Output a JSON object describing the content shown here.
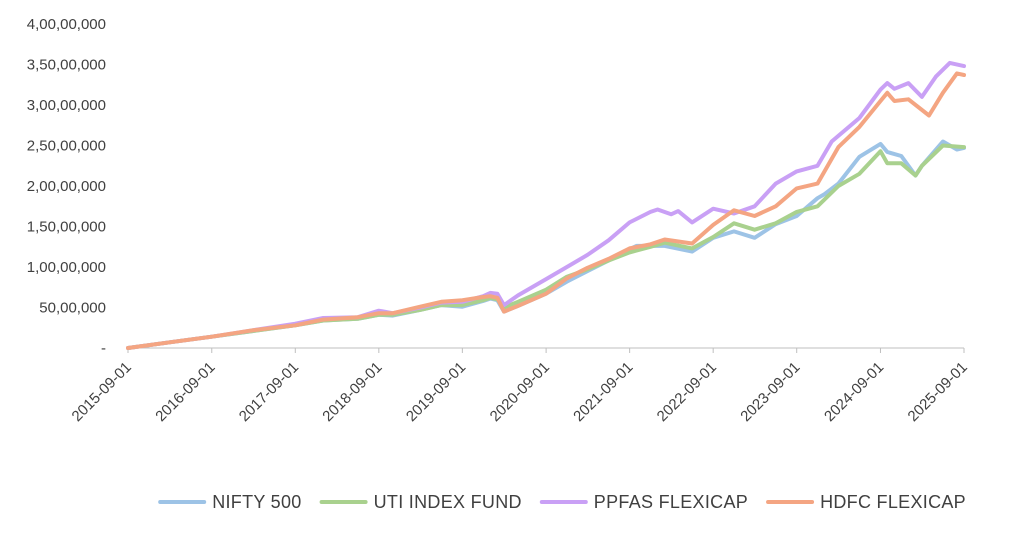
{
  "chart_data": {
    "type": "line",
    "title": "",
    "xlabel": "",
    "ylabel": "",
    "ylim": [
      0,
      40000000
    ],
    "y_ticks": [
      {
        "value": 0,
        "label": "-"
      },
      {
        "value": 5000000,
        "label": "50,00,000"
      },
      {
        "value": 10000000,
        "label": "1,00,00,000"
      },
      {
        "value": 15000000,
        "label": "1,50,00,000"
      },
      {
        "value": 20000000,
        "label": "2,00,00,000"
      },
      {
        "value": 25000000,
        "label": "2,50,00,000"
      },
      {
        "value": 30000000,
        "label": "3,00,00,000"
      },
      {
        "value": 35000000,
        "label": "3,50,00,000"
      },
      {
        "value": 40000000,
        "label": "4,00,00,000"
      }
    ],
    "x_ticks": [
      "2015-09-01",
      "2016-09-01",
      "2017-09-01",
      "2018-09-01",
      "2019-09-01",
      "2020-09-01",
      "2021-09-01",
      "2022-09-01",
      "2023-09-01",
      "2024-09-01",
      "2025-09-01"
    ],
    "xlim": [
      "2015-09-01",
      "2025-09-01"
    ],
    "grid": false,
    "legend_position": "bottom",
    "series": [
      {
        "name": "NIFTY 500",
        "color": "#9dc3e6",
        "points": [
          [
            "2015-09-01",
            0
          ],
          [
            "2016-03-01",
            700000
          ],
          [
            "2016-09-01",
            1400000
          ],
          [
            "2017-03-01",
            2100000
          ],
          [
            "2017-09-01",
            2800000
          ],
          [
            "2018-01-01",
            3400000
          ],
          [
            "2018-06-01",
            3600000
          ],
          [
            "2018-09-01",
            4100000
          ],
          [
            "2018-11-01",
            4000000
          ],
          [
            "2019-03-01",
            4700000
          ],
          [
            "2019-06-01",
            5300000
          ],
          [
            "2019-09-01",
            5100000
          ],
          [
            "2019-12-01",
            5800000
          ],
          [
            "2020-01-01",
            6100000
          ],
          [
            "2020-02-01",
            5900000
          ],
          [
            "2020-03-01",
            4500000
          ],
          [
            "2020-05-01",
            5200000
          ],
          [
            "2020-09-01",
            6700000
          ],
          [
            "2020-12-01",
            8200000
          ],
          [
            "2021-03-01",
            9500000
          ],
          [
            "2021-06-01",
            10800000
          ],
          [
            "2021-09-01",
            12200000
          ],
          [
            "2021-10-01",
            12600000
          ],
          [
            "2021-12-01",
            12600000
          ],
          [
            "2022-02-01",
            12600000
          ],
          [
            "2022-06-01",
            11900000
          ],
          [
            "2022-09-01",
            13600000
          ],
          [
            "2022-12-01",
            14400000
          ],
          [
            "2023-03-01",
            13600000
          ],
          [
            "2023-06-01",
            15300000
          ],
          [
            "2023-09-01",
            16300000
          ],
          [
            "2023-12-01",
            18500000
          ],
          [
            "2024-01-01",
            19000000
          ],
          [
            "2024-03-01",
            20300000
          ],
          [
            "2024-06-01",
            23600000
          ],
          [
            "2024-09-01",
            25200000
          ],
          [
            "2024-10-01",
            24200000
          ],
          [
            "2024-12-01",
            23700000
          ],
          [
            "2025-02-01",
            21300000
          ],
          [
            "2025-03-01",
            22500000
          ],
          [
            "2025-06-01",
            25500000
          ],
          [
            "2025-08-01",
            24500000
          ],
          [
            "2025-09-01",
            24700000
          ]
        ]
      },
      {
        "name": "UTI INDEX FUND",
        "color": "#a9d18e",
        "points": [
          [
            "2015-09-01",
            0
          ],
          [
            "2016-03-01",
            700000
          ],
          [
            "2016-09-01",
            1400000
          ],
          [
            "2017-03-01",
            2100000
          ],
          [
            "2017-09-01",
            2800000
          ],
          [
            "2018-01-01",
            3400000
          ],
          [
            "2018-06-01",
            3600000
          ],
          [
            "2018-09-01",
            4100000
          ],
          [
            "2018-11-01",
            4100000
          ],
          [
            "2019-03-01",
            4700000
          ],
          [
            "2019-06-01",
            5300000
          ],
          [
            "2019-09-01",
            5300000
          ],
          [
            "2019-12-01",
            5900000
          ],
          [
            "2020-01-01",
            6200000
          ],
          [
            "2020-02-01",
            6000000
          ],
          [
            "2020-03-01",
            5000000
          ],
          [
            "2020-05-01",
            5700000
          ],
          [
            "2020-09-01",
            7200000
          ],
          [
            "2020-12-01",
            8800000
          ],
          [
            "2021-03-01",
            9700000
          ],
          [
            "2021-06-01",
            10800000
          ],
          [
            "2021-09-01",
            11800000
          ],
          [
            "2021-12-01",
            12500000
          ],
          [
            "2022-02-01",
            13000000
          ],
          [
            "2022-06-01",
            12300000
          ],
          [
            "2022-09-01",
            13700000
          ],
          [
            "2022-12-01",
            15400000
          ],
          [
            "2023-03-01",
            14600000
          ],
          [
            "2023-06-01",
            15400000
          ],
          [
            "2023-09-01",
            16800000
          ],
          [
            "2023-12-01",
            17500000
          ],
          [
            "2024-03-01",
            20000000
          ],
          [
            "2024-06-01",
            21500000
          ],
          [
            "2024-09-01",
            24300000
          ],
          [
            "2024-10-01",
            22800000
          ],
          [
            "2024-12-01",
            22800000
          ],
          [
            "2025-02-01",
            21300000
          ],
          [
            "2025-03-01",
            22500000
          ],
          [
            "2025-06-01",
            25000000
          ],
          [
            "2025-09-01",
            24800000
          ]
        ]
      },
      {
        "name": "PPFAS FLEXICAP",
        "color": "#c9a0f5",
        "points": [
          [
            "2015-09-01",
            0
          ],
          [
            "2016-03-01",
            700000
          ],
          [
            "2016-09-01",
            1400000
          ],
          [
            "2017-03-01",
            2200000
          ],
          [
            "2017-09-01",
            3000000
          ],
          [
            "2018-01-01",
            3700000
          ],
          [
            "2018-06-01",
            3800000
          ],
          [
            "2018-09-01",
            4600000
          ],
          [
            "2018-11-01",
            4300000
          ],
          [
            "2019-03-01",
            5000000
          ],
          [
            "2019-06-01",
            5600000
          ],
          [
            "2019-09-01",
            5700000
          ],
          [
            "2019-12-01",
            6400000
          ],
          [
            "2020-01-01",
            6800000
          ],
          [
            "2020-02-01",
            6700000
          ],
          [
            "2020-03-01",
            5300000
          ],
          [
            "2020-05-01",
            6500000
          ],
          [
            "2020-09-01",
            8500000
          ],
          [
            "2020-12-01",
            10000000
          ],
          [
            "2021-03-01",
            11500000
          ],
          [
            "2021-06-01",
            13300000
          ],
          [
            "2021-09-01",
            15500000
          ],
          [
            "2021-12-01",
            16800000
          ],
          [
            "2022-01-01",
            17100000
          ],
          [
            "2022-03-01",
            16500000
          ],
          [
            "2022-04-01",
            16900000
          ],
          [
            "2022-06-01",
            15500000
          ],
          [
            "2022-09-01",
            17200000
          ],
          [
            "2022-12-01",
            16600000
          ],
          [
            "2023-03-01",
            17500000
          ],
          [
            "2023-06-01",
            20300000
          ],
          [
            "2023-09-01",
            21800000
          ],
          [
            "2023-12-01",
            22500000
          ],
          [
            "2024-02-01",
            25500000
          ],
          [
            "2024-06-01",
            28400000
          ],
          [
            "2024-09-01",
            31900000
          ],
          [
            "2024-10-01",
            32700000
          ],
          [
            "2024-11-01",
            32000000
          ],
          [
            "2025-01-01",
            32700000
          ],
          [
            "2025-03-01",
            31000000
          ],
          [
            "2025-05-01",
            33500000
          ],
          [
            "2025-07-01",
            35200000
          ],
          [
            "2025-09-01",
            34800000
          ]
        ]
      },
      {
        "name": "HDFC FLEXICAP",
        "color": "#f4a582",
        "points": [
          [
            "2015-09-01",
            0
          ],
          [
            "2016-03-01",
            700000
          ],
          [
            "2016-09-01",
            1400000
          ],
          [
            "2017-03-01",
            2200000
          ],
          [
            "2017-09-01",
            2800000
          ],
          [
            "2018-01-01",
            3500000
          ],
          [
            "2018-06-01",
            3800000
          ],
          [
            "2018-09-01",
            4300000
          ],
          [
            "2018-11-01",
            4300000
          ],
          [
            "2019-03-01",
            5100000
          ],
          [
            "2019-06-01",
            5700000
          ],
          [
            "2019-09-01",
            5900000
          ],
          [
            "2019-12-01",
            6300000
          ],
          [
            "2020-01-01",
            6400000
          ],
          [
            "2020-02-01",
            6200000
          ],
          [
            "2020-03-01",
            4500000
          ],
          [
            "2020-05-01",
            5200000
          ],
          [
            "2020-09-01",
            6700000
          ],
          [
            "2020-12-01",
            8600000
          ],
          [
            "2021-03-01",
            9900000
          ],
          [
            "2021-06-01",
            11000000
          ],
          [
            "2021-09-01",
            12300000
          ],
          [
            "2021-12-01",
            12800000
          ],
          [
            "2022-02-01",
            13400000
          ],
          [
            "2022-06-01",
            12900000
          ],
          [
            "2022-09-01",
            15200000
          ],
          [
            "2022-12-01",
            17000000
          ],
          [
            "2023-03-01",
            16300000
          ],
          [
            "2023-06-01",
            17500000
          ],
          [
            "2023-09-01",
            19700000
          ],
          [
            "2023-12-01",
            20300000
          ],
          [
            "2024-03-01",
            24800000
          ],
          [
            "2024-06-01",
            27300000
          ],
          [
            "2024-09-01",
            30500000
          ],
          [
            "2024-10-01",
            31500000
          ],
          [
            "2024-11-01",
            30500000
          ],
          [
            "2025-01-01",
            30700000
          ],
          [
            "2025-04-01",
            28700000
          ],
          [
            "2025-06-01",
            31500000
          ],
          [
            "2025-08-01",
            33900000
          ],
          [
            "2025-09-01",
            33700000
          ]
        ]
      }
    ]
  }
}
